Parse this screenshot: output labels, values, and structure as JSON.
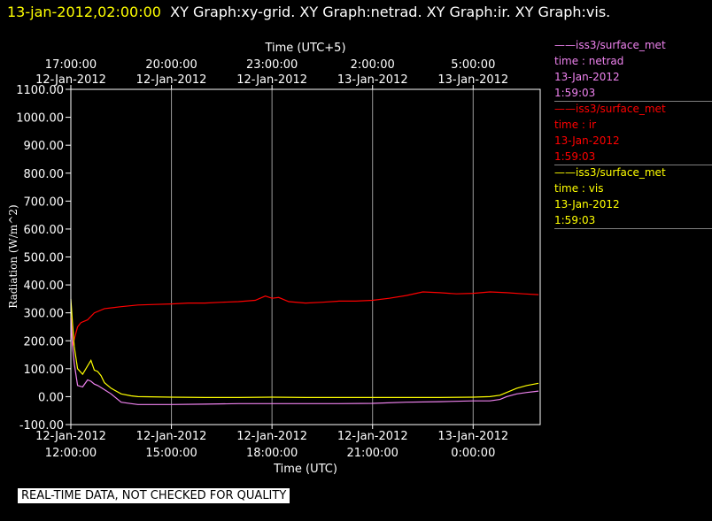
{
  "header": {
    "timestamp": "13-jan-2012,02:00:00",
    "graph_titles": "XY Graph:xy-grid.  XY Graph:netrad.  XY Graph:ir.  XY Graph:vis."
  },
  "legend": [
    {
      "line1": "——iss3/surface_met",
      "line2": "time : netrad",
      "line3": "13-Jan-2012",
      "line4": "1:59:03",
      "color": "#ee82ee"
    },
    {
      "line1": "——iss3/surface_met",
      "line2": "time : ir",
      "line3": "13-Jan-2012",
      "line4": "1:59:03",
      "color": "#ff0000"
    },
    {
      "line1": "——iss3/surface_met",
      "line2": "time : vis",
      "line3": "13-Jan-2012",
      "line4": "1:59:03",
      "color": "#ffff00"
    }
  ],
  "banner": "REAL-TIME DATA, NOT CHECKED FOR QUALITY",
  "chart_data": {
    "type": "line",
    "xlabel": "Time (UTC)",
    "x2label": "Time (UTC+5)",
    "ylabel": "Radiation (W/m^2)",
    "ylim": [
      -100,
      1100
    ],
    "yticks": [
      -100,
      0,
      100,
      200,
      300,
      400,
      500,
      600,
      700,
      800,
      900,
      1000,
      1100
    ],
    "ytick_labels": [
      "-100.00",
      "0.00",
      "100.00",
      "200.00",
      "300.00",
      "400.00",
      "500.00",
      "600.00",
      "700.00",
      "800.00",
      "900.00",
      "1000.00",
      "1100.00"
    ],
    "xlim_hours": [
      0,
      14
    ],
    "xticks_bottom": [
      {
        "h": 0,
        "date": "12-Jan-2012",
        "time": "12:00:00"
      },
      {
        "h": 3,
        "date": "12-Jan-2012",
        "time": "15:00:00"
      },
      {
        "h": 6,
        "date": "12-Jan-2012",
        "time": "18:00:00"
      },
      {
        "h": 9,
        "date": "12-Jan-2012",
        "time": "21:00:00"
      },
      {
        "h": 12,
        "date": "13-Jan-2012",
        "time": "0:00:00"
      }
    ],
    "xticks_top": [
      {
        "h": 0,
        "time": "17:00:00",
        "date": "12-Jan-2012"
      },
      {
        "h": 3,
        "time": "20:00:00",
        "date": "12-Jan-2012"
      },
      {
        "h": 6,
        "time": "23:00:00",
        "date": "12-Jan-2012"
      },
      {
        "h": 9,
        "time": "2:00:00",
        "date": "13-Jan-2012"
      },
      {
        "h": 12,
        "time": "5:00:00",
        "date": "13-Jan-2012"
      }
    ],
    "grid": true,
    "series": [
      {
        "name": "ir",
        "color": "#ff0000",
        "x": [
          0,
          0.05,
          0.1,
          0.2,
          0.3,
          0.5,
          0.7,
          1.0,
          1.5,
          2.0,
          2.5,
          3.0,
          3.5,
          4.0,
          4.5,
          5.0,
          5.5,
          5.8,
          6.0,
          6.2,
          6.5,
          7.0,
          7.5,
          8.0,
          8.5,
          9.0,
          9.5,
          10.0,
          10.5,
          11.0,
          11.5,
          12.0,
          12.5,
          13.0,
          13.5,
          13.95
        ],
        "y": [
          300,
          180,
          205,
          250,
          265,
          275,
          300,
          315,
          322,
          328,
          330,
          332,
          335,
          335,
          338,
          340,
          345,
          360,
          352,
          355,
          340,
          335,
          338,
          342,
          342,
          345,
          352,
          362,
          375,
          372,
          368,
          370,
          375,
          372,
          368,
          365
        ]
      },
      {
        "name": "vis",
        "color": "#ffff00",
        "x": [
          0,
          0.05,
          0.1,
          0.2,
          0.35,
          0.5,
          0.6,
          0.7,
          0.8,
          0.9,
          1.0,
          1.2,
          1.5,
          1.8,
          2.0,
          3.0,
          4.0,
          5.0,
          6.0,
          7.0,
          8.0,
          9.0,
          10.0,
          11.0,
          12.0,
          12.5,
          12.8,
          13.0,
          13.3,
          13.6,
          13.95
        ],
        "y": [
          350,
          260,
          180,
          100,
          80,
          110,
          130,
          95,
          90,
          75,
          50,
          30,
          10,
          3,
          0,
          -2,
          -3,
          -3,
          -2,
          -3,
          -3,
          -3,
          -3,
          -3,
          -2,
          0,
          5,
          15,
          30,
          40,
          48
        ]
      },
      {
        "name": "netrad",
        "color": "#ee82ee",
        "x": [
          0,
          0.05,
          0.1,
          0.2,
          0.35,
          0.5,
          0.6,
          0.7,
          0.8,
          1.0,
          1.2,
          1.5,
          1.8,
          2.0,
          3.0,
          4.0,
          5.0,
          6.0,
          7.0,
          8.0,
          9.0,
          10.0,
          11.0,
          12.0,
          12.5,
          12.8,
          13.0,
          13.3,
          13.6,
          13.95
        ],
        "y": [
          280,
          180,
          120,
          40,
          35,
          60,
          55,
          45,
          40,
          25,
          10,
          -20,
          -25,
          -28,
          -28,
          -27,
          -25,
          -25,
          -25,
          -25,
          -24,
          -20,
          -18,
          -15,
          -15,
          -10,
          0,
          10,
          15,
          20
        ]
      }
    ]
  }
}
